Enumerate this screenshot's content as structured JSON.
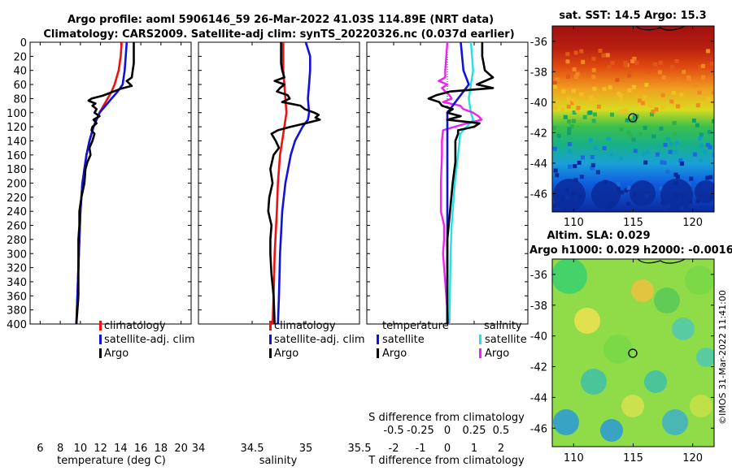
{
  "header": {
    "title_line1": "Argo profile: aoml 5906146_59 26-Mar-2022 41.03S 114.89E (NRT data)",
    "title_line2": "Climatology: CARS2009. Satellite-adj clim: synTS_20220326.nc (0.037d earlier)"
  },
  "credit": "©IMOS 31-Mar-2022 11:41:00",
  "colors": {
    "climatology": "#ee1111",
    "satellite": "#1111dd",
    "argo": "#000000",
    "sat_salinity": "#22e0e8",
    "argo_salinity": "#ee22ee"
  },
  "chart_data": [
    {
      "type": "line",
      "id": "temperature",
      "xlabel": "temperature (deg C)",
      "xlim": [
        5,
        21
      ],
      "xticks": [
        "6",
        "8",
        "10",
        "12",
        "14",
        "16",
        "18",
        "20"
      ],
      "ylim": [
        0,
        400
      ],
      "yticks": [
        "0",
        "20",
        "40",
        "60",
        "80",
        "100",
        "120",
        "140",
        "160",
        "180",
        "200",
        "220",
        "240",
        "260",
        "280",
        "300",
        "320",
        "340",
        "360",
        "380",
        "400"
      ],
      "legend": [
        "climatology",
        "satellite-adj. clim",
        "Argo"
      ],
      "series": [
        {
          "name": "climatology",
          "depth": [
            0,
            20,
            40,
            60,
            70,
            80,
            90,
            100,
            120,
            140,
            160,
            180,
            200,
            240,
            280,
            320,
            360,
            400
          ],
          "values": [
            14.1,
            14.0,
            13.8,
            13.4,
            13.1,
            12.7,
            12.3,
            11.9,
            11.3,
            10.9,
            10.6,
            10.4,
            10.2,
            10.0,
            9.9,
            9.8,
            9.7,
            9.6
          ]
        },
        {
          "name": "satellite-adj. clim",
          "depth": [
            0,
            20,
            40,
            60,
            70,
            80,
            90,
            100,
            120,
            140,
            160,
            180,
            200,
            240,
            280,
            320,
            360,
            400
          ],
          "values": [
            14.6,
            14.5,
            14.4,
            14.2,
            13.7,
            13.1,
            12.5,
            11.9,
            11.3,
            10.9,
            10.6,
            10.4,
            10.2,
            10.0,
            9.9,
            9.8,
            9.7,
            9.6
          ]
        },
        {
          "name": "Argo",
          "depth": [
            0,
            10,
            20,
            30,
            40,
            50,
            55,
            62,
            66,
            70,
            76,
            80,
            83,
            87,
            90,
            95,
            100,
            105,
            110,
            115,
            120,
            125,
            130,
            140,
            150,
            160,
            170,
            180,
            200,
            220,
            240,
            260,
            280,
            300,
            320,
            340,
            360,
            380,
            400
          ],
          "values": [
            15.3,
            15.3,
            15.3,
            15.3,
            15.2,
            15.1,
            14.6,
            15.1,
            14.0,
            13.3,
            12.2,
            11.1,
            10.8,
            11.5,
            11.2,
            11.6,
            11.4,
            11.9,
            11.3,
            11.6,
            11.2,
            11.1,
            11.4,
            11.2,
            10.9,
            11.0,
            10.7,
            10.5,
            10.4,
            10.1,
            9.9,
            9.9,
            9.8,
            9.8,
            9.8,
            9.8,
            9.8,
            9.7,
            9.6
          ]
        }
      ]
    },
    {
      "type": "line",
      "id": "salinity",
      "xlabel": "salinity",
      "xlim": [
        34,
        35.5
      ],
      "xticks": [
        "34",
        "34.5",
        "35",
        "35.5"
      ],
      "ylim": [
        0,
        400
      ],
      "legend": [
        "climatology",
        "satellite-adj. clim",
        "Argo"
      ],
      "series": [
        {
          "name": "climatology",
          "depth": [
            0,
            40,
            60,
            80,
            100,
            120,
            140,
            160,
            200,
            240,
            300,
            360,
            400
          ],
          "values": [
            34.79,
            34.79,
            34.8,
            34.81,
            34.82,
            34.8,
            34.78,
            34.76,
            34.74,
            34.73,
            34.71,
            34.7,
            34.69
          ]
        },
        {
          "name": "satellite-adj. clim",
          "depth": [
            0,
            20,
            40,
            60,
            80,
            100,
            110,
            120,
            140,
            160,
            200,
            240,
            300,
            360,
            400
          ],
          "values": [
            35.0,
            35.04,
            35.04,
            35.03,
            35.02,
            35.03,
            35.02,
            34.97,
            34.9,
            34.86,
            34.81,
            34.78,
            34.76,
            34.75,
            34.74
          ]
        },
        {
          "name": "Argo",
          "depth": [
            0,
            30,
            40,
            50,
            55,
            60,
            65,
            70,
            75,
            80,
            85,
            90,
            95,
            100,
            103,
            107,
            110,
            115,
            120,
            125,
            130,
            140,
            150,
            160,
            180,
            200,
            220,
            240,
            260,
            280,
            300,
            330,
            360,
            400
          ],
          "values": [
            34.77,
            34.77,
            34.78,
            34.8,
            34.71,
            34.8,
            34.76,
            34.73,
            34.83,
            34.85,
            34.78,
            34.95,
            34.99,
            35.08,
            35.12,
            35.09,
            35.13,
            35.0,
            34.86,
            34.74,
            34.68,
            34.72,
            34.75,
            34.7,
            34.67,
            34.69,
            34.66,
            34.65,
            34.68,
            34.67,
            34.67,
            34.68,
            34.7,
            34.71
          ]
        }
      ]
    },
    {
      "type": "line",
      "id": "difference",
      "xlabel": "T difference from climatology",
      "xlabel_top": "S difference from climatology",
      "xlim_T": [
        -3,
        3
      ],
      "xticks_T": [
        "-2",
        "-1",
        "0",
        "1",
        "2"
      ],
      "xlim_S": [
        -0.75,
        0.75
      ],
      "xticks_S": [
        "-0.5",
        "-0.25",
        "0",
        "0.25",
        "0.5"
      ],
      "ylim": [
        0,
        400
      ],
      "legend_temperature": {
        "title": "temperature",
        "items": [
          "satellite",
          "Argo"
        ]
      },
      "legend_salinity": {
        "title": "salinity",
        "items": [
          "satellite",
          "Argo"
        ]
      },
      "series": [
        {
          "name": "temperature satellite",
          "depth": [
            0,
            40,
            60,
            70,
            80,
            100,
            120,
            140,
            200,
            300,
            400
          ],
          "values": [
            0.5,
            0.6,
            0.8,
            0.6,
            0.4,
            0.0,
            0.0,
            0.0,
            0.0,
            0.0,
            0.0
          ]
        },
        {
          "name": "temperature Argo",
          "depth": [
            0,
            20,
            40,
            50,
            60,
            65,
            70,
            75,
            80,
            85,
            90,
            95,
            100,
            105,
            110,
            115,
            120,
            125,
            130,
            140,
            150,
            170,
            200,
            240,
            280,
            320,
            360,
            400
          ],
          "values": [
            1.3,
            1.3,
            1.4,
            1.7,
            1.1,
            1.7,
            0.1,
            -0.4,
            -0.7,
            -0.3,
            -0.2,
            0.2,
            0.0,
            0.5,
            0.0,
            1.2,
            1.0,
            0.4,
            0.4,
            0.3,
            0.3,
            0.3,
            0.2,
            0.1,
            0.0,
            0.0,
            0.0,
            0.0
          ]
        },
        {
          "name": "salinity satellite",
          "depth": [
            0,
            40,
            60,
            80,
            100,
            110,
            120,
            130,
            160,
            200,
            260,
            300,
            400
          ],
          "values": [
            0.22,
            0.24,
            0.22,
            0.2,
            0.22,
            0.24,
            0.18,
            0.12,
            0.1,
            0.07,
            0.04,
            0.03,
            0.02
          ]
        },
        {
          "name": "salinity Argo",
          "depth": [
            0,
            40,
            50,
            55,
            60,
            65,
            70,
            75,
            80,
            85,
            90,
            95,
            100,
            105,
            110,
            115,
            125,
            140,
            160,
            200,
            240,
            260,
            280,
            300,
            340,
            380,
            400
          ],
          "values": [
            0.0,
            -0.02,
            -0.02,
            -0.08,
            0.0,
            -0.05,
            -0.02,
            0.02,
            0.04,
            -0.04,
            0.12,
            0.15,
            0.24,
            0.29,
            0.32,
            0.18,
            -0.04,
            -0.05,
            -0.05,
            -0.06,
            -0.06,
            -0.03,
            -0.03,
            -0.04,
            -0.02,
            0.0,
            0.01
          ]
        }
      ]
    },
    {
      "type": "heatmap",
      "id": "sst-map",
      "title": "sat. SST: 14.5 Argo: 15.3",
      "xticks": [
        "110",
        "115",
        "120"
      ],
      "yticks": [
        "-36",
        "-38",
        "-40",
        "-42",
        "-44",
        "-46"
      ],
      "xlim": [
        108.2,
        121.8
      ],
      "ylim": [
        -47.2,
        -35
      ]
    },
    {
      "type": "heatmap",
      "id": "sla-map",
      "title": "Altim. SLA: 0.029",
      "subtitle": "Argo h1000: 0.029 h2000: -0.0016",
      "xticks": [
        "110",
        "115",
        "120"
      ],
      "yticks": [
        "-36",
        "-38",
        "-40",
        "-42",
        "-44",
        "-46"
      ],
      "xlim": [
        108.2,
        121.8
      ],
      "ylim": [
        -47.2,
        -35
      ]
    }
  ]
}
